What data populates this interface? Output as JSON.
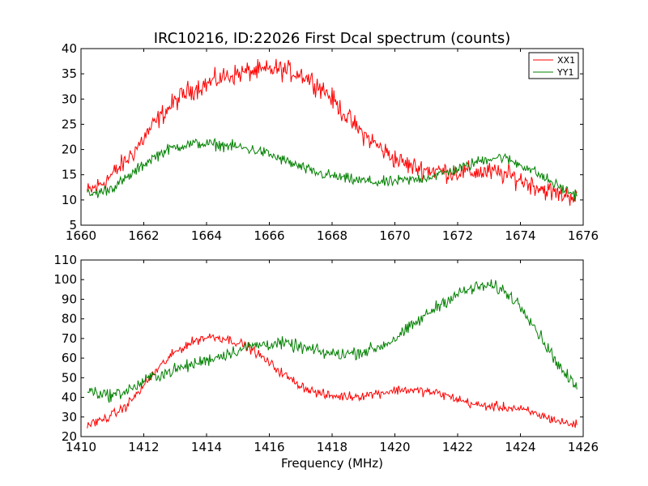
{
  "figure": {
    "title": "IRC10216, ID:22026 First Dcal spectrum (counts)",
    "colors": {
      "XX1": "#ff0000",
      "YY1": "#008000"
    }
  },
  "chart_data": [
    {
      "type": "line",
      "title": "IRC10216, ID:22026 First Dcal spectrum (counts)",
      "xlabel": "",
      "ylabel": "",
      "xlim": [
        1660,
        1676
      ],
      "ylim": [
        5,
        40
      ],
      "x_ticks": [
        "1660",
        "1662",
        "1664",
        "1666",
        "1668",
        "1670",
        "1672",
        "1674",
        "1676"
      ],
      "y_ticks": [
        "5",
        "10",
        "15",
        "20",
        "25",
        "30",
        "35",
        "40"
      ],
      "legend": {
        "position": "top-right",
        "entries": [
          "XX1",
          "YY1"
        ]
      },
      "grid": false,
      "series": [
        {
          "name": "XX1",
          "color": "#ff0000",
          "noise": 1.0,
          "x": [
            1660.2,
            1660.6,
            1661.0,
            1661.4,
            1661.8,
            1662.2,
            1662.6,
            1663.0,
            1663.4,
            1663.8,
            1664.2,
            1664.6,
            1665.0,
            1665.4,
            1665.8,
            1666.2,
            1666.6,
            1667.0,
            1667.4,
            1667.8,
            1668.2,
            1668.6,
            1669.0,
            1669.4,
            1669.8,
            1670.2,
            1670.6,
            1671.0,
            1671.4,
            1671.8,
            1672.2,
            1672.6,
            1673.0,
            1673.4,
            1673.8,
            1674.2,
            1674.6,
            1675.0,
            1675.4,
            1675.8
          ],
          "y": [
            11.5,
            13.0,
            15.0,
            17.5,
            20.5,
            24.0,
            27.0,
            29.5,
            31.5,
            32.5,
            33.5,
            34.5,
            35.0,
            35.5,
            35.5,
            36.0,
            35.5,
            35.0,
            33.5,
            31.5,
            28.5,
            25.5,
            23.0,
            21.0,
            19.0,
            17.5,
            16.5,
            16.0,
            15.8,
            15.5,
            15.5,
            15.5,
            15.5,
            15.2,
            14.5,
            13.5,
            12.5,
            11.5,
            11.0,
            10.8
          ]
        },
        {
          "name": "YY1",
          "color": "#008000",
          "noise": 0.55,
          "x": [
            1660.2,
            1660.6,
            1661.0,
            1661.4,
            1661.8,
            1662.2,
            1662.6,
            1663.0,
            1663.4,
            1663.8,
            1664.2,
            1664.6,
            1665.0,
            1665.4,
            1665.8,
            1666.2,
            1666.6,
            1667.0,
            1667.4,
            1667.8,
            1668.2,
            1668.6,
            1669.0,
            1669.4,
            1669.8,
            1670.2,
            1670.6,
            1671.0,
            1671.4,
            1671.8,
            1672.2,
            1672.6,
            1673.0,
            1673.4,
            1673.8,
            1674.2,
            1674.6,
            1675.0,
            1675.4,
            1675.8
          ],
          "y": [
            11.0,
            11.5,
            12.5,
            14.0,
            16.0,
            18.0,
            19.5,
            20.5,
            21.0,
            21.2,
            21.0,
            20.8,
            20.5,
            20.0,
            19.5,
            18.5,
            17.5,
            16.5,
            15.5,
            15.0,
            14.5,
            14.0,
            13.8,
            13.5,
            13.5,
            13.8,
            14.0,
            14.5,
            15.0,
            15.8,
            16.5,
            17.5,
            18.3,
            18.5,
            17.5,
            16.5,
            15.0,
            13.5,
            12.0,
            11.0
          ]
        }
      ]
    },
    {
      "type": "line",
      "title": "",
      "xlabel": "Frequency (MHz)",
      "ylabel": "",
      "xlim": [
        1410,
        1426
      ],
      "ylim": [
        20,
        110
      ],
      "x_ticks": [
        "1410",
        "1412",
        "1414",
        "1416",
        "1418",
        "1420",
        "1422",
        "1424",
        "1426"
      ],
      "y_ticks": [
        "20",
        "30",
        "40",
        "50",
        "60",
        "70",
        "80",
        "90",
        "100",
        "110"
      ],
      "grid": false,
      "series": [
        {
          "name": "XX1",
          "color": "#ff0000",
          "noise": 1.2,
          "x": [
            1410.2,
            1410.6,
            1411.0,
            1411.4,
            1411.8,
            1412.2,
            1412.6,
            1413.0,
            1413.4,
            1413.8,
            1414.2,
            1414.6,
            1415.0,
            1415.4,
            1415.8,
            1416.2,
            1416.6,
            1417.0,
            1417.4,
            1417.8,
            1418.2,
            1418.6,
            1419.0,
            1419.4,
            1419.8,
            1420.2,
            1420.6,
            1421.0,
            1421.4,
            1421.8,
            1422.2,
            1422.6,
            1423.0,
            1423.4,
            1423.8,
            1424.2,
            1424.6,
            1425.0,
            1425.4,
            1425.8
          ],
          "y": [
            26.0,
            28.0,
            31.0,
            35.0,
            42.0,
            50.0,
            57.0,
            63.0,
            67.0,
            70.0,
            71.0,
            70.0,
            68.0,
            65.0,
            60.0,
            55.0,
            50.0,
            46.0,
            43.0,
            41.0,
            40.5,
            40.5,
            41.0,
            42.0,
            43.0,
            44.0,
            43.5,
            43.0,
            42.0,
            40.0,
            38.0,
            36.0,
            35.5,
            35.0,
            34.5,
            33.0,
            31.0,
            29.0,
            27.0,
            26.0
          ]
        },
        {
          "name": "YY1",
          "color": "#008000",
          "noise": 1.6,
          "x": [
            1410.2,
            1410.6,
            1411.0,
            1411.4,
            1411.8,
            1412.2,
            1412.6,
            1413.0,
            1413.4,
            1413.8,
            1414.2,
            1414.6,
            1415.0,
            1415.4,
            1415.8,
            1416.2,
            1416.6,
            1417.0,
            1417.4,
            1417.8,
            1418.2,
            1418.6,
            1419.0,
            1419.4,
            1419.8,
            1420.2,
            1420.6,
            1421.0,
            1421.4,
            1421.8,
            1422.2,
            1422.6,
            1423.0,
            1423.4,
            1423.8,
            1424.2,
            1424.6,
            1425.0,
            1425.4,
            1425.8
          ],
          "y": [
            44.0,
            42.0,
            41.0,
            43.0,
            46.0,
            50.0,
            52.0,
            54.0,
            56.0,
            58.0,
            60.0,
            62.0,
            64.0,
            66.0,
            67.0,
            67.5,
            67.0,
            65.5,
            64.0,
            62.5,
            62.0,
            62.5,
            63.5,
            65.0,
            68.0,
            72.0,
            77.0,
            82.0,
            87.0,
            91.0,
            94.0,
            96.0,
            97.0,
            95.0,
            90.0,
            83.0,
            72.0,
            62.0,
            52.0,
            45.0
          ]
        }
      ]
    }
  ]
}
